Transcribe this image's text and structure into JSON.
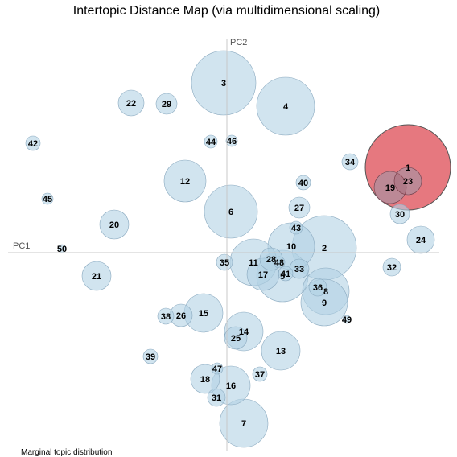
{
  "page": {
    "title": "Intertopic Distance Map (via multidimensional scaling)"
  },
  "colors": {
    "bubble_fill": "#b3d2e5",
    "bubble_stroke": "#8aa9bf",
    "selected_fill": "#e05a63",
    "selected_stroke": "#555555",
    "axis": "#c8c8c8"
  },
  "chart_data": {
    "type": "scatter",
    "title": "Intertopic Distance Map (via multidimensional scaling)",
    "xlabel": "PC1",
    "ylabel": "PC2",
    "selected_topic": "1",
    "xlim": [
      -280,
      290
    ],
    "ylim": [
      -250,
      270
    ],
    "points": [
      {
        "label": "1",
        "x": 225,
        "y": 106,
        "r": 53
      },
      {
        "label": "2",
        "x": 121,
        "y": 6,
        "r": 40
      },
      {
        "label": "3",
        "x": -4,
        "y": 211,
        "r": 40
      },
      {
        "label": "4",
        "x": 73,
        "y": 182,
        "r": 36
      },
      {
        "label": "5",
        "x": 69,
        "y": -29,
        "r": 32
      },
      {
        "label": "6",
        "x": 5,
        "y": 51,
        "r": 33
      },
      {
        "label": "7",
        "x": 21,
        "y": -212,
        "r": 30
      },
      {
        "label": "8",
        "x": 123,
        "y": -48,
        "r": 29
      },
      {
        "label": "9",
        "x": 121,
        "y": -62,
        "r": 29
      },
      {
        "label": "10",
        "x": 80,
        "y": 8,
        "r": 29
      },
      {
        "label": "11",
        "x": 33,
        "y": -12,
        "r": 29
      },
      {
        "label": "12",
        "x": -52,
        "y": 89,
        "r": 26
      },
      {
        "label": "13",
        "x": 67,
        "y": -122,
        "r": 24
      },
      {
        "label": "14",
        "x": 21,
        "y": -98,
        "r": 24
      },
      {
        "label": "15",
        "x": -29,
        "y": -75,
        "r": 24
      },
      {
        "label": "16",
        "x": 5,
        "y": -165,
        "r": 24
      },
      {
        "label": "17",
        "x": 45,
        "y": -27,
        "r": 20
      },
      {
        "label": "18",
        "x": -27,
        "y": -157,
        "r": 18
      },
      {
        "label": "19",
        "x": 203,
        "y": 81,
        "r": 20
      },
      {
        "label": "20",
        "x": -140,
        "y": 35,
        "r": 18
      },
      {
        "label": "21",
        "x": -162,
        "y": -29,
        "r": 18
      },
      {
        "label": "22",
        "x": -119,
        "y": 186,
        "r": 16
      },
      {
        "label": "23",
        "x": 225,
        "y": 89,
        "r": 17
      },
      {
        "label": "24",
        "x": 241,
        "y": 16,
        "r": 17
      },
      {
        "label": "25",
        "x": 11,
        "y": -106,
        "r": 14
      },
      {
        "label": "26",
        "x": -57,
        "y": -78,
        "r": 14
      },
      {
        "label": "27",
        "x": 90,
        "y": 56,
        "r": 13
      },
      {
        "label": "28",
        "x": 55,
        "y": -8,
        "r": 14
      },
      {
        "label": "29",
        "x": -75,
        "y": 185,
        "r": 13
      },
      {
        "label": "30",
        "x": 215,
        "y": 48,
        "r": 12
      },
      {
        "label": "31",
        "x": -13,
        "y": -180,
        "r": 11
      },
      {
        "label": "32",
        "x": 205,
        "y": -18,
        "r": 11
      },
      {
        "label": "33",
        "x": 90,
        "y": -20,
        "r": 12
      },
      {
        "label": "34",
        "x": 153,
        "y": 113,
        "r": 10
      },
      {
        "label": "35",
        "x": -3,
        "y": -12,
        "r": 10
      },
      {
        "label": "36",
        "x": 113,
        "y": -43,
        "r": 11
      },
      {
        "label": "37",
        "x": 41,
        "y": -151,
        "r": 9
      },
      {
        "label": "38",
        "x": -76,
        "y": -79,
        "r": 10
      },
      {
        "label": "39",
        "x": -95,
        "y": -129,
        "r": 9
      },
      {
        "label": "40",
        "x": 95,
        "y": 87,
        "r": 9
      },
      {
        "label": "41",
        "x": 73,
        "y": -26,
        "r": 9
      },
      {
        "label": "42",
        "x": -241,
        "y": 136,
        "r": 9
      },
      {
        "label": "43",
        "x": 86,
        "y": 31,
        "r": 8
      },
      {
        "label": "44",
        "x": -20,
        "y": 138,
        "r": 8
      },
      {
        "label": "45",
        "x": -223,
        "y": 67,
        "r": 7
      },
      {
        "label": "46",
        "x": 6,
        "y": 139,
        "r": 7
      },
      {
        "label": "47",
        "x": -12,
        "y": -144,
        "r": 7
      },
      {
        "label": "48",
        "x": 65,
        "y": -12,
        "r": 7
      },
      {
        "label": "49",
        "x": 149,
        "y": -83,
        "r": 5
      },
      {
        "label": "50",
        "x": -205,
        "y": 5,
        "r": 5
      }
    ]
  },
  "footer": {
    "note": "Marginal topic distribution"
  }
}
